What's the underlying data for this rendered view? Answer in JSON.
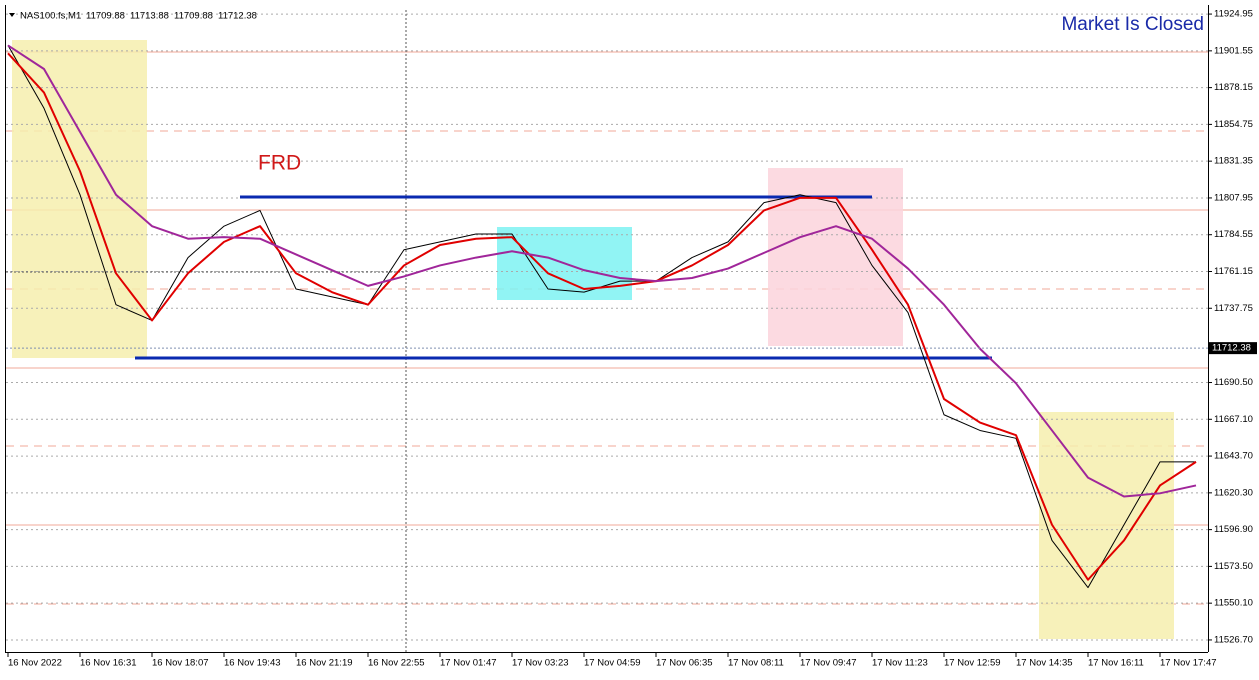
{
  "header": {
    "symbol": "NAS100.fs,M1",
    "ohlc": [
      11709.88,
      11713.88,
      11709.88,
      11712.38
    ]
  },
  "chart_data": {
    "type": "line",
    "status": "Market Is Closed",
    "annotation": "FRD",
    "current_price": 11712.38,
    "categories": [
      "16 Nov 2022",
      null,
      "16 Nov 16:31",
      null,
      "16 Nov 18:07",
      null,
      "16 Nov 19:43",
      null,
      "16 Nov 21:19",
      null,
      "16 Nov 22:55",
      null,
      "17 Nov 01:47",
      null,
      "17 Nov 03:23",
      null,
      "17 Nov 04:59",
      null,
      "17 Nov 06:35",
      null,
      "17 Nov 08:11",
      null,
      "17 Nov 09:47",
      null,
      "17 Nov 11:23",
      null,
      "17 Nov 12:59",
      null,
      "17 Nov 14:35",
      null,
      "17 Nov 16:11",
      null,
      "17 Nov 17:47",
      null
    ],
    "series": [
      {
        "color": "#000000",
        "values": [
          11905,
          11865,
          11810,
          11740,
          11730,
          11770,
          11790,
          11800,
          11750,
          11745,
          11740,
          11775,
          11780,
          11785,
          11785,
          11750,
          11748,
          11755,
          11755,
          11770,
          11780,
          11805,
          11810,
          11805,
          11765,
          11735,
          11670,
          11660,
          11655,
          11590,
          11560,
          11600,
          11640,
          11640
        ]
      },
      {
        "color": "#e00000",
        "values": [
          11900,
          11875,
          11825,
          11760,
          11730,
          11760,
          11780,
          11790,
          11760,
          11748,
          11740,
          11765,
          11778,
          11782,
          11783,
          11760,
          11750,
          11752,
          11755,
          11765,
          11778,
          11800,
          11808,
          11808,
          11775,
          11740,
          11680,
          11665,
          11657,
          11600,
          11565,
          11590,
          11625,
          11640
        ]
      },
      {
        "color": "#a0269a",
        "values": [
          11905,
          11890,
          11850,
          11810,
          11790,
          11782,
          11783,
          11782,
          11772,
          11762,
          11752,
          11758,
          11765,
          11770,
          11774,
          11770,
          11762,
          11757,
          11755,
          11757,
          11763,
          11773,
          11783,
          11790,
          11782,
          11763,
          11740,
          11712,
          11690,
          11660,
          11630,
          11618,
          11620,
          11625
        ]
      }
    ],
    "ylim": [
      11520.3,
      11933.9
    ],
    "yticks": [
      11924.95,
      11901.55,
      11878.15,
      {
        "value": 11854.75,
        "label": "11854.75"
      },
      11831.35,
      11807.95,
      11784.55,
      11761.15,
      11737.75,
      {
        "value": 11690.5,
        "label": "11690.50"
      },
      {
        "value": 11667.1,
        "label": "11667.10"
      },
      {
        "value": 11643.7,
        "label": "11643.70"
      },
      {
        "value": 11620.3,
        "label": "11620.30"
      },
      {
        "value": 11596.9,
        "label": "11596.90"
      },
      {
        "value": 11573.5,
        "label": "11573.50"
      },
      {
        "value": 11550.1,
        "label": "11550.10"
      },
      {
        "value": 11526.7,
        "label": "11526.70"
      }
    ],
    "grid": true
  }
}
